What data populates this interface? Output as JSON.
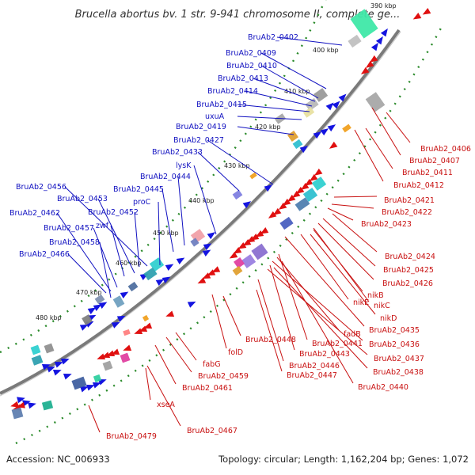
{
  "title": "Brucella abortus bv. 1 str. 9-941 chromosome II, complete ge...",
  "footer": {
    "accession": "Accession: NC_006933",
    "topology": "Topology: circular; Length: 1,162,204 bp; Genes: 1,072"
  },
  "scale_labels": [
    "390 kbp",
    "400 kbp",
    "410 kbp",
    "420 kbp",
    "430 kbp",
    "440 kbp",
    "450 kbp",
    "460 kbp",
    "470 kbp",
    "480 kbp"
  ],
  "colors": {
    "forward": "#1414e0",
    "reverse": "#e01010",
    "backbone": "#7a7a7a",
    "dots": "#2a8a2a",
    "blue_label": "#1010c0",
    "red_label": "#c81010"
  },
  "blue_labels": [
    "BruAb2_0402",
    "BruAb2_0409",
    "BruAb2_0410",
    "BruAb2_0413",
    "BruAb2_0414",
    "BruAb2_0415",
    "uxuA",
    "BruAb2_0419",
    "BruAb2_0427",
    "BruAb2_0433",
    "lysK",
    "BruAb2_0444",
    "BruAb2_0445",
    "proC",
    "BruAb2_0456",
    "BruAb2_0453",
    "BruAb2_0452",
    "BruAb2_0462",
    "zwf",
    "BruAb2_0457",
    "BruAb2_0458",
    "BruAb2_0466"
  ],
  "red_labels": [
    "BruAb2_0406",
    "BruAb2_0407",
    "BruAb2_0411",
    "BruAb2_0412",
    "BruAb2_0421",
    "BruAb2_0422",
    "BruAb2_0423",
    "BruAb2_0424",
    "BruAb2_0425",
    "BruAb2_0426",
    "nikB",
    "nikE",
    "nikC",
    "nikD",
    "BruAb2_0435",
    "fadB",
    "BruAb2_0441",
    "BruAb2_0436",
    "BruAb2_0448",
    "BruAb2_0443",
    "BruAb2_0437",
    "BruAb2_0446",
    "BruAb2_0438",
    "folD",
    "BruAb2_0447",
    "BruAb2_0440",
    "fabG",
    "BruAb2_0459",
    "BruAb2_0461",
    "xseA",
    "BruAb2_0467",
    "BruAb2_0479"
  ]
}
